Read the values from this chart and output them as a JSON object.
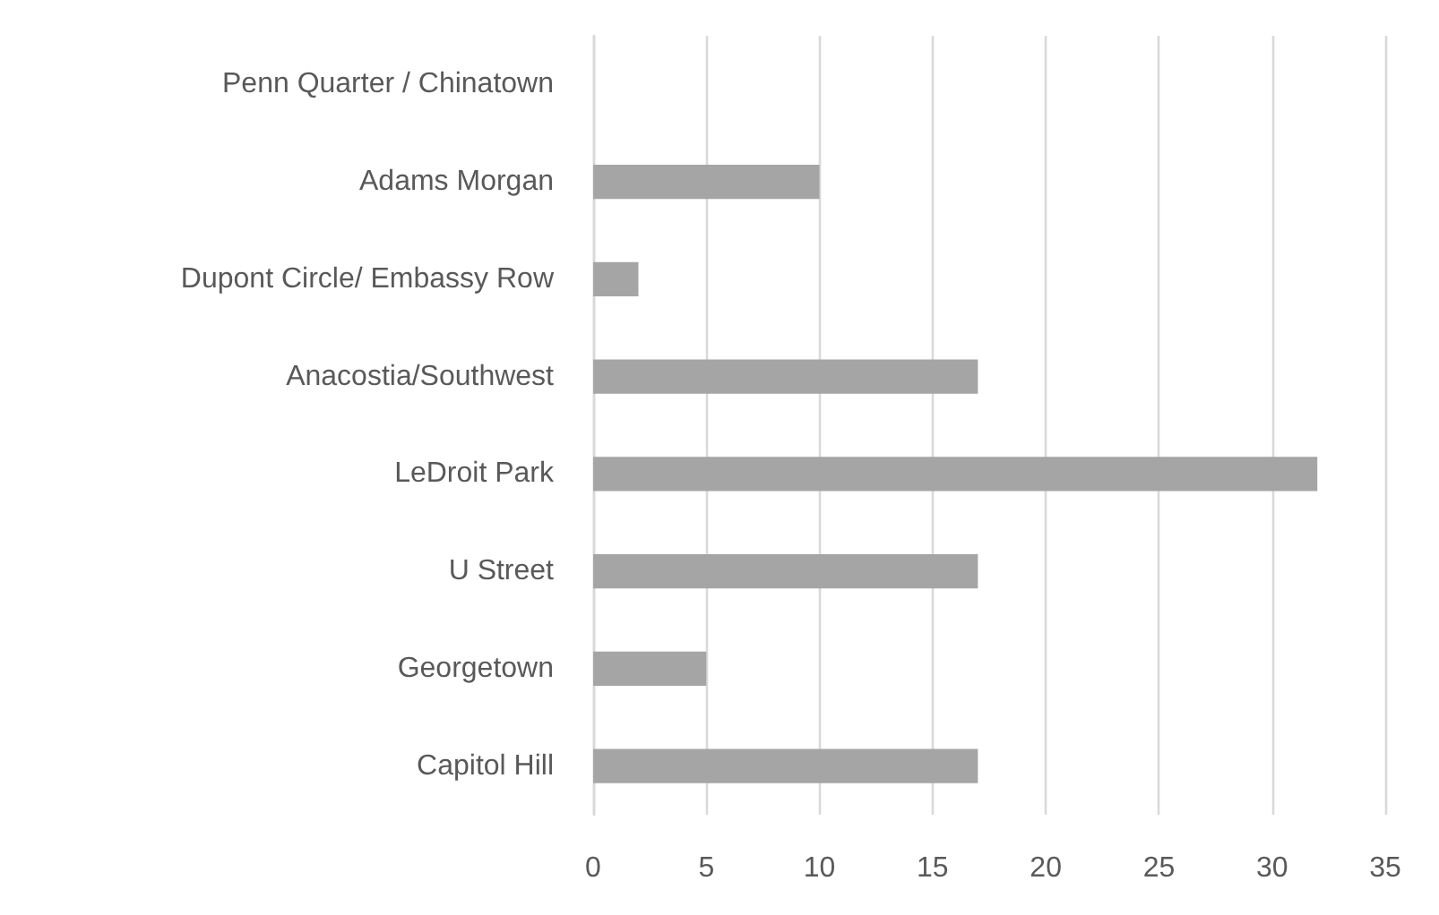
{
  "chart_data": {
    "type": "bar",
    "orientation": "horizontal",
    "categories": [
      "Penn Quarter / Chinatown",
      "Adams Morgan",
      "Dupont Circle/ Embassy Row",
      "Anacostia/Southwest",
      "LeDroit Park",
      "U Street",
      "Georgetown",
      "Capitol Hill"
    ],
    "values": [
      0,
      10,
      2,
      17,
      32,
      17,
      5,
      17
    ],
    "color": "#a5a5a5",
    "xlim": [
      0,
      35
    ],
    "xticks": [
      0,
      5,
      10,
      15,
      20,
      25,
      30,
      35
    ],
    "grid": "x"
  }
}
